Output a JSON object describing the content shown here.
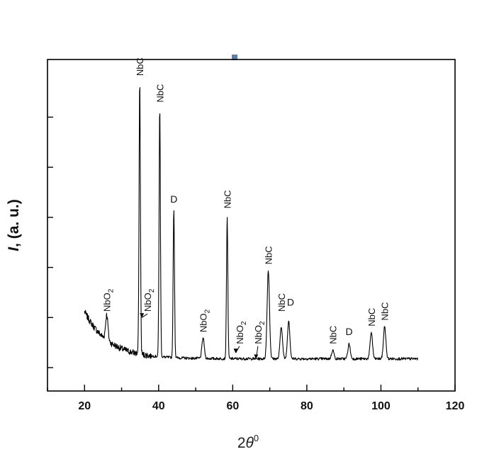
{
  "chart_data": {
    "type": "line",
    "title": "",
    "xlabel": {
      "base": "2",
      "theta": "θ",
      "sup": "0"
    },
    "ylabel": {
      "italic": "I",
      "rest": ", (a. u.)"
    },
    "xlim": [
      10,
      120
    ],
    "xticks": [
      20,
      40,
      60,
      80,
      100,
      120
    ],
    "ylim": [
      0,
      100
    ],
    "y_ticks_unlabeled": [
      0,
      17,
      34,
      51,
      68,
      85
    ],
    "grid": false,
    "legend": "none",
    "series": [
      {
        "peaks": [
          {
            "x": 26.0,
            "y": 18
          },
          {
            "x": 34.9,
            "y": 97
          },
          {
            "x": 40.3,
            "y": 88
          },
          {
            "x": 44.1,
            "y": 54
          },
          {
            "x": 52.0,
            "y": 10
          },
          {
            "x": 58.5,
            "y": 51
          },
          {
            "x": 69.6,
            "y": 33
          },
          {
            "x": 73.1,
            "y": 14
          },
          {
            "x": 75.1,
            "y": 16
          },
          {
            "x": 87.0,
            "y": 6
          },
          {
            "x": 91.4,
            "y": 8
          },
          {
            "x": 97.4,
            "y": 12
          },
          {
            "x": 101.0,
            "y": 14
          }
        ],
        "color": "#000000"
      }
    ],
    "annotations": [
      {
        "text": "NbO",
        "sub": "2",
        "x": 26.0,
        "y": 19,
        "arrow": false
      },
      {
        "text": "NbC",
        "sub": "",
        "x": 34.9,
        "y": 99,
        "arrow": false
      },
      {
        "text": "NbO",
        "sub": "2",
        "x": 37.0,
        "y": 19,
        "arrow": true,
        "arrow_to": {
          "x": 35.5,
          "y": 17
        }
      },
      {
        "text": "NbC",
        "sub": "",
        "x": 40.3,
        "y": 90,
        "arrow": false
      },
      {
        "text": "D",
        "sub": "",
        "x": 44.1,
        "y": 56,
        "arrow": false
      },
      {
        "text": "NbO",
        "sub": "2",
        "x": 52.0,
        "y": 12,
        "arrow": false
      },
      {
        "text": "NbC",
        "sub": "",
        "x": 58.5,
        "y": 54,
        "arrow": false
      },
      {
        "text": "NbO",
        "sub": "2",
        "x": 61.8,
        "y": 8,
        "arrow": true,
        "arrow_to": {
          "x": 60.8,
          "y": 5
        }
      },
      {
        "text": "NbO",
        "sub": "2",
        "x": 66.8,
        "y": 8,
        "arrow": true,
        "arrow_to": {
          "x": 66.3,
          "y": 3
        }
      },
      {
        "text": "NbC",
        "sub": "",
        "x": 69.6,
        "y": 35,
        "arrow": false
      },
      {
        "text": "NbC",
        "sub": "",
        "x": 73.1,
        "y": 19,
        "arrow": false
      },
      {
        "text": "D",
        "sub": "",
        "x": 75.6,
        "y": 21,
        "arrow": false
      },
      {
        "text": "NbC",
        "sub": "",
        "x": 87.0,
        "y": 8,
        "arrow": false
      },
      {
        "text": "D",
        "sub": "",
        "x": 91.4,
        "y": 11,
        "arrow": false
      },
      {
        "text": "NbC",
        "sub": "",
        "x": 97.4,
        "y": 14,
        "arrow": false
      },
      {
        "text": "NbC",
        "sub": "",
        "x": 101.0,
        "y": 16,
        "arrow": false
      }
    ]
  }
}
